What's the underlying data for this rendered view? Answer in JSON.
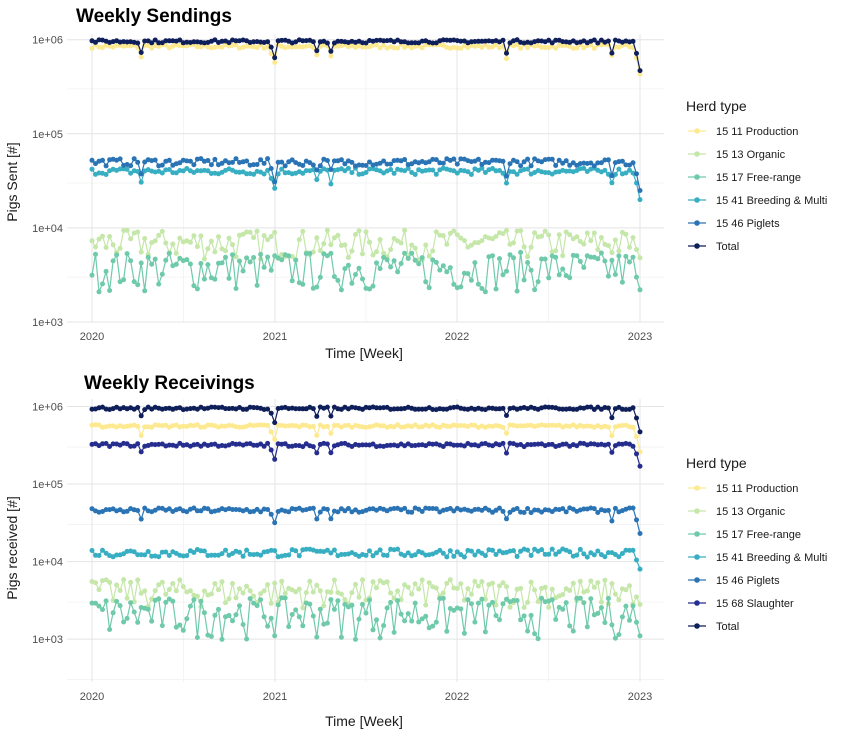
{
  "chart_data": [
    {
      "type": "line",
      "title": "Weekly Sendings",
      "xlabel": "Time [Week]",
      "ylabel": "Pigs Sent [#]",
      "y_scale": "log10",
      "ylim": [
        1000,
        1150000
      ],
      "xlim": [
        2020,
        2023
      ],
      "x_ticks": [
        "2020",
        "2021",
        "2022",
        "2023"
      ],
      "y_ticks": [
        "1e+03",
        "1e+04",
        "1e+05",
        "1e+06"
      ],
      "legend_title": "Herd type",
      "legend_position": "right",
      "series": [
        {
          "name": "15 11 Production",
          "color": "#fde98f",
          "level": 850000,
          "spread": 0.05,
          "end": 430000
        },
        {
          "name": "15 13 Organic",
          "color": "#c5e7a9",
          "level": 7000,
          "spread": 0.35,
          "end": 4800
        },
        {
          "name": "15 17 Free-range",
          "color": "#6fcaaa",
          "level": 3800,
          "spread": 0.45,
          "end": 2200
        },
        {
          "name": "15 41 Breeding & Multi",
          "color": "#38aec3",
          "level": 40000,
          "spread": 0.08,
          "end": 20000
        },
        {
          "name": "15 46 Piglets",
          "color": "#2a74b5",
          "level": 50000,
          "spread": 0.09,
          "end": 25000
        },
        {
          "name": "Total",
          "color": "#0f1f5a",
          "level": 960000,
          "spread": 0.04,
          "end": 470000
        }
      ]
    },
    {
      "type": "line",
      "title": "Weekly Receivings",
      "xlabel": "Time [Week]",
      "ylabel": "Pigs received [#]",
      "y_scale": "log10",
      "ylim": [
        280,
        1250000
      ],
      "xlim": [
        2020,
        2023
      ],
      "x_ticks": [
        "2020",
        "2021",
        "2022",
        "2023"
      ],
      "y_ticks": [
        "1e+03",
        "1e+04",
        "1e+05",
        "1e+06"
      ],
      "legend_title": "Herd type",
      "legend_position": "right",
      "series": [
        {
          "name": "15 11 Production",
          "color": "#fde98f",
          "level": 560000,
          "spread": 0.04,
          "end": 260000
        },
        {
          "name": "15 13 Organic",
          "color": "#c5e7a9",
          "level": 4200,
          "spread": 0.4,
          "end": 2800
        },
        {
          "name": "15 17 Free-range",
          "color": "#6fcaaa",
          "level": 2200,
          "spread": 0.55,
          "end": 1100
        },
        {
          "name": "15 41 Breeding & Multi",
          "color": "#38aec3",
          "level": 13000,
          "spread": 0.12,
          "end": 8000
        },
        {
          "name": "15 46 Piglets",
          "color": "#2a74b5",
          "level": 46000,
          "spread": 0.07,
          "end": 23000
        },
        {
          "name": "15 68 Slaughter",
          "color": "#252e8f",
          "level": 320000,
          "spread": 0.05,
          "end": 170000
        },
        {
          "name": "Total",
          "color": "#0f1f5a",
          "level": 950000,
          "spread": 0.04,
          "end": 470000
        }
      ]
    }
  ]
}
